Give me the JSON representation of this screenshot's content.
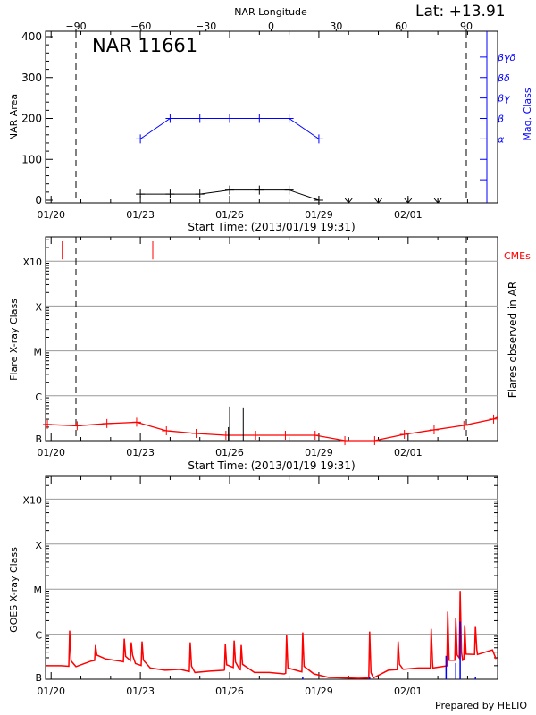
{
  "header": {
    "lat_label": "Lat: +13.91",
    "footer": "Prepared by HELIO"
  },
  "colors": {
    "area": "#000000",
    "mag_class": "#0000ff",
    "flare": "#ff0000",
    "cme": "#ff0000",
    "goes_long": "#ff0000",
    "goes_short": "#0000ff",
    "grid": "#999999"
  },
  "chart_data": [
    {
      "type": "line",
      "title": "NAR 11661",
      "xlabel": "Start Time: (2013/01/19 19:31)",
      "ylabel": "NAR Area",
      "y2label": "Mag. Class",
      "top_xlabel": "NAR Longitude",
      "x_ticks": [
        "01/20",
        "01/23",
        "01/26",
        "01/29",
        "02/01"
      ],
      "top_x_ticks": [
        "-90",
        "-60",
        "-30",
        "0",
        "30",
        "60",
        "90"
      ],
      "y_ticks": [
        "0",
        "100",
        "200",
        "300",
        "400"
      ],
      "ylim": [
        0,
        400
      ],
      "y2_ticks": [
        "α",
        "β",
        "βγ",
        "βδ",
        "βγδ"
      ],
      "limb_longitudes": [
        -90,
        90
      ],
      "series": [
        {
          "key": "area",
          "x": [
            "01/23 00:00",
            "01/24 00:00",
            "01/25 00:00",
            "01/26 00:00",
            "01/27 00:00",
            "01/28 00:00",
            "01/29 00:00"
          ],
          "values": [
            15,
            15,
            15,
            25,
            25,
            25,
            0
          ]
        },
        {
          "key": "mag_class",
          "x": [
            "01/23 00:00",
            "01/24 00:00",
            "01/25 00:00",
            "01/26 00:00",
            "01/27 00:00",
            "01/28 00:00",
            "01/29 00:00"
          ],
          "values": [
            "α",
            "β",
            "β",
            "β",
            "β",
            "β",
            "α"
          ]
        }
      ],
      "no_data_markers": [
        "01/30 00:00",
        "01/31 00:00",
        "02/01 00:00",
        "02/02 00:00"
      ]
    },
    {
      "type": "line",
      "xlabel": "Start Time: (2013/01/19 19:31)",
      "ylabel": "Flare X-ray Class",
      "y2label": "Flares observed in AR",
      "cme_label": "CMEs",
      "x_ticks": [
        "01/20",
        "01/23",
        "01/26",
        "01/29",
        "02/01"
      ],
      "y_ticks": [
        "B",
        "C",
        "M",
        "X",
        "X10"
      ],
      "grid": true,
      "background_level": {
        "x": [
          "01/19 21:00",
          "01/20 21:00",
          "01/21 21:00",
          "01/22 21:00",
          "01/23 21:00",
          "01/24 21:00",
          "01/25 21:00",
          "01/26 21:00",
          "01/27 21:00",
          "01/28 21:00",
          "01/29 21:00",
          "01/30 21:00",
          "01/31 21:00",
          "02/01 21:00",
          "02/02 21:00",
          "02/03 21:00"
        ],
        "values": [
          0.36,
          0.33,
          0.38,
          0.41,
          0.22,
          0.16,
          0.12,
          0.12,
          0.12,
          0.12,
          0,
          0,
          0.14,
          0.24,
          0.34,
          0.48
        ]
      },
      "flares": [
        {
          "x": "01/25 23:00",
          "level": 0.3
        },
        {
          "x": "01/26 00:00",
          "level": 0.76
        },
        {
          "x": "01/26 11:00",
          "level": 0.74
        }
      ],
      "cmes": [
        "01/20 09:00",
        "01/23 10:00"
      ]
    },
    {
      "type": "line",
      "ylabel": "GOES X-ray Class",
      "x_ticks": [
        "01/20",
        "01/23",
        "01/26",
        "01/29",
        "02/01"
      ],
      "y_ticks": [
        "B",
        "C",
        "M",
        "X",
        "X10"
      ],
      "grid": true,
      "long_channel": {
        "x": [
          "01/19 20:00",
          "01/20 08:00",
          "01/20 20:00",
          "01/21 08:00",
          "01/21 20:00",
          "01/22 08:00",
          "01/22 20:00",
          "01/23 08:00",
          "01/23 20:00",
          "01/24 08:00",
          "01/24 20:00",
          "01/25 08:00",
          "01/25 20:00",
          "01/26 08:00",
          "01/26 20:00",
          "01/27 08:00",
          "01/27 20:00",
          "01/28 08:00",
          "01/28 20:00",
          "01/29 08:00",
          "01/29 20:00",
          "01/30 08:00",
          "01/30 20:00",
          "01/31 08:00",
          "01/31 20:00",
          "02/01 08:00",
          "02/01 20:00",
          "02/02 08:00",
          "02/02 20:00",
          "02/03 08:00",
          "02/03 20:00",
          "02/03 23:00"
        ],
        "values": [
          0.3,
          0.3,
          0.28,
          0.4,
          0.45,
          0.4,
          0.35,
          0.25,
          0.2,
          0.22,
          0.15,
          0.18,
          0.2,
          0.22,
          0.15,
          0.15,
          0.12,
          0.18,
          0.12,
          0.04,
          0.03,
          0.02,
          0.03,
          0.2,
          0.22,
          0.25,
          0.25,
          0.3,
          0.42,
          0.55,
          0.65,
          0.45
        ]
      },
      "peaks": [
        {
          "x": "01/20 15:00",
          "level": 1.08
        },
        {
          "x": "01/21 11:50",
          "level": 0.76
        },
        {
          "x": "01/22 11:00",
          "level": 0.9
        },
        {
          "x": "01/22 16:40",
          "level": 0.82
        },
        {
          "x": "01/23 01:20",
          "level": 0.84
        },
        {
          "x": "01/24 16:10",
          "level": 0.82
        },
        {
          "x": "01/25 20:30",
          "level": 0.78
        },
        {
          "x": "01/26 03:40",
          "level": 0.86
        },
        {
          "x": "01/26 09:20",
          "level": 0.76
        },
        {
          "x": "01/27 22:00",
          "level": 0.98
        },
        {
          "x": "01/28 11:00",
          "level": 1.04
        },
        {
          "x": "01/30 17:00",
          "level": 1.06
        },
        {
          "x": "01/31 16:00",
          "level": 0.84
        },
        {
          "x": "02/01 18:40",
          "level": 1.12
        },
        {
          "x": "02/02 08:00",
          "level": 1.5
        },
        {
          "x": "02/02 14:30",
          "level": 1.36
        },
        {
          "x": "02/02 18:00",
          "level": 1.96
        },
        {
          "x": "02/02 21:40",
          "level": 1.2
        },
        {
          "x": "02/03 06:20",
          "level": 1.18
        }
      ],
      "short_channel": [
        {
          "x": "01/28 11:00",
          "level": 0.05
        },
        {
          "x": "01/30 17:00",
          "level": 0.05
        },
        {
          "x": "02/02 06:40",
          "level": 0.52
        },
        {
          "x": "02/02 14:30",
          "level": 0.36
        },
        {
          "x": "02/02 18:00",
          "level": 1.28
        },
        {
          "x": "02/03 06:20",
          "level": 0.05
        }
      ]
    }
  ]
}
